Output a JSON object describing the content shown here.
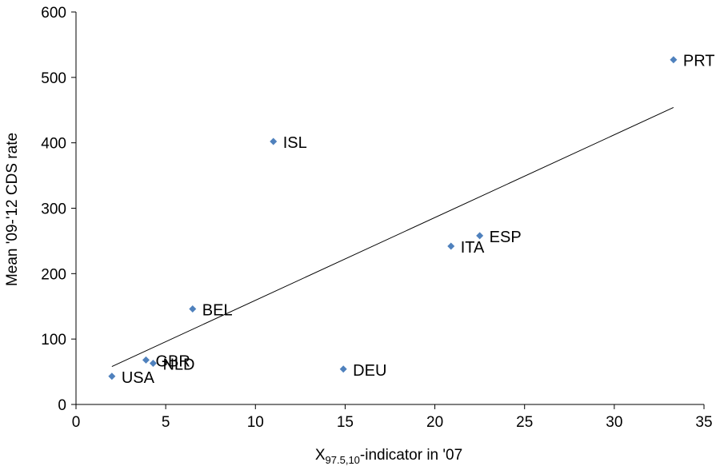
{
  "chart_data": {
    "type": "scatter",
    "title": "",
    "xlabel": {
      "main": "X",
      "subscript": "97.5,10",
      "suffix": "-indicator in '07"
    },
    "ylabel": "Mean '09-'12 CDS rate",
    "xlim": [
      0,
      35
    ],
    "ylim": [
      0,
      600
    ],
    "x_ticks": [
      0,
      5,
      10,
      15,
      20,
      25,
      30,
      35
    ],
    "y_ticks": [
      0,
      100,
      200,
      300,
      400,
      500,
      600
    ],
    "grid": false,
    "legend": "none",
    "marker_color": "#4F81BD",
    "trendline_color": "#000000",
    "points": [
      {
        "label": "USA",
        "x": 2.0,
        "y": 43
      },
      {
        "label": "GBR",
        "x": 3.9,
        "y": 68
      },
      {
        "label": "NLD",
        "x": 4.3,
        "y": 63
      },
      {
        "label": "BEL",
        "x": 6.5,
        "y": 146
      },
      {
        "label": "ISL",
        "x": 11.0,
        "y": 402
      },
      {
        "label": "DEU",
        "x": 14.9,
        "y": 54
      },
      {
        "label": "ITA",
        "x": 20.9,
        "y": 242
      },
      {
        "label": "ESP",
        "x": 22.5,
        "y": 258
      },
      {
        "label": "PRT",
        "x": 33.3,
        "y": 527
      }
    ],
    "trendline": {
      "x": [
        2.0,
        33.3
      ],
      "y": [
        58,
        454
      ]
    }
  }
}
